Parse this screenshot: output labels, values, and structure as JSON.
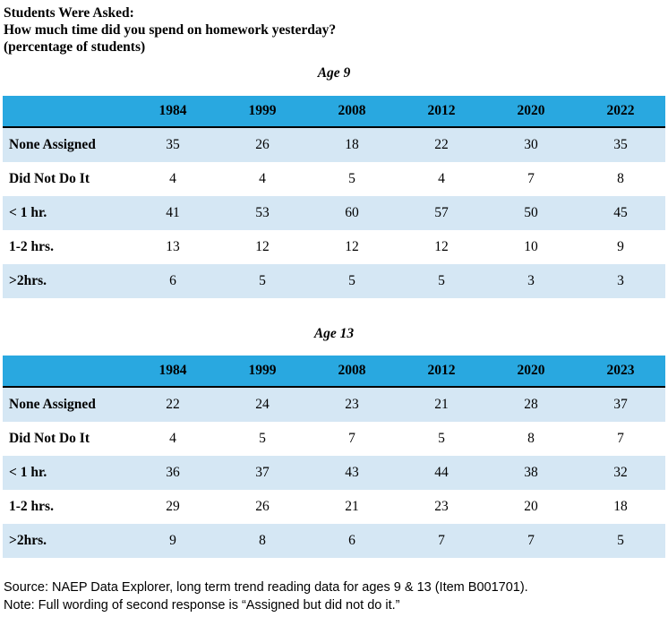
{
  "titles": {
    "line1": "Students Were Asked:",
    "line2": "How much time did you spend on homework yesterday?",
    "line3": "(percentage of students)"
  },
  "tables": [
    {
      "caption": "Age 9",
      "columns": [
        "",
        "1984",
        "1999",
        "2008",
        "2012",
        "2020",
        "2022"
      ],
      "rows": [
        {
          "label": "None Assigned",
          "values": [
            35,
            26,
            18,
            22,
            30,
            35
          ]
        },
        {
          "label": "Did Not Do It",
          "values": [
            4,
            4,
            5,
            4,
            7,
            8
          ]
        },
        {
          "label": "< 1 hr.",
          "values": [
            41,
            53,
            60,
            57,
            50,
            45
          ]
        },
        {
          "label": "1-2 hrs.",
          "values": [
            13,
            12,
            12,
            12,
            10,
            9
          ]
        },
        {
          "label": ">2hrs.",
          "values": [
            6,
            5,
            5,
            5,
            3,
            3
          ]
        }
      ]
    },
    {
      "caption": "Age 13",
      "columns": [
        "",
        "1984",
        "1999",
        "2008",
        "2012",
        "2020",
        "2023"
      ],
      "rows": [
        {
          "label": "None Assigned",
          "values": [
            22,
            24,
            23,
            21,
            28,
            37
          ]
        },
        {
          "label": "Did Not Do It",
          "values": [
            4,
            5,
            7,
            5,
            8,
            7
          ]
        },
        {
          "label": "< 1 hr.",
          "values": [
            36,
            37,
            43,
            44,
            38,
            32
          ]
        },
        {
          "label": "1-2 hrs.",
          "values": [
            29,
            26,
            21,
            23,
            20,
            18
          ]
        },
        {
          "label": ">2hrs.",
          "values": [
            9,
            8,
            6,
            7,
            7,
            5
          ]
        }
      ]
    }
  ],
  "footer": {
    "source": "Source: NAEP Data Explorer, long term trend reading data for ages 9 & 13 (Item B001701).",
    "note": "Note:  Full wording of second response is “Assigned but did not do it.”"
  },
  "colors": {
    "header_blue": "#29A8E0",
    "band_blue": "#D5E7F4",
    "text": "#000000",
    "background": "#FFFFFF"
  }
}
